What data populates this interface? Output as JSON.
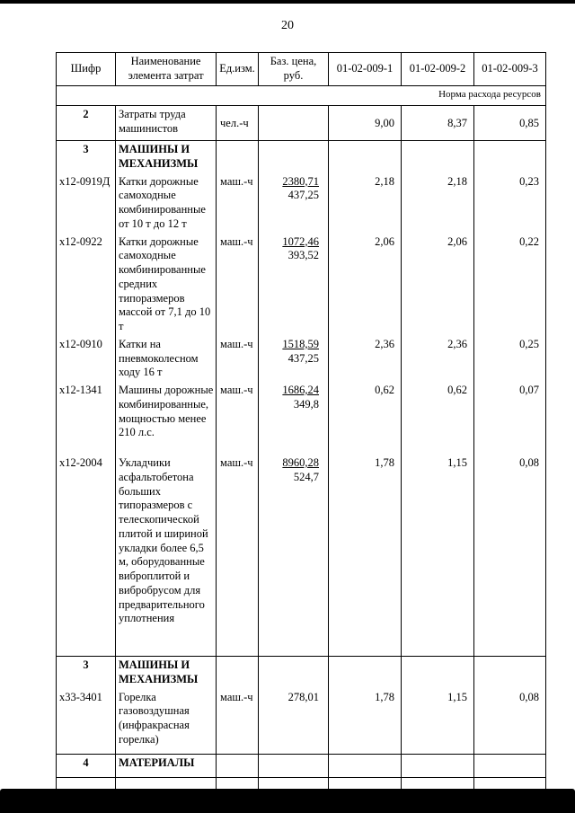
{
  "page": {
    "number": "20"
  },
  "table": {
    "headers": [
      "Шифр",
      "Наименование элемента затрат",
      "Ед.изм.",
      "Баз. цена, руб.",
      "01-02-009-1",
      "01-02-009-2",
      "01-02-009-3"
    ],
    "subheader": "Норма расхода ресурсов",
    "row2": {
      "code": "2",
      "name": "Затраты труда машинистов",
      "unit": "чел.-ч",
      "v1": "9,00",
      "v2": "8,37",
      "v3": "0,85"
    },
    "blocks": [
      {
        "code": "3",
        "title": "МАШИНЫ И МЕХАНИЗМЫ",
        "items": [
          {
            "code": "х12-0919Д",
            "name": "Катки дорожные самоходные комбинированные от 10 т до 12 т",
            "unit": "маш.-ч",
            "price_num": "2380,71",
            "price_den": "437,25",
            "v1": "2,18",
            "v2": "2,18",
            "v3": "0,23"
          },
          {
            "code": "х12-0922",
            "name": "Катки дорожные самоходные комбинированные средних типоразмеров массой от 7,1 до 10 т",
            "unit": "маш.-ч",
            "price_num": "1072,46",
            "price_den": "393,52",
            "v1": "2,06",
            "v2": "2,06",
            "v3": "0,22"
          },
          {
            "code": "х12-0910",
            "name": "Катки на пневмоколесном ходу 16 т",
            "unit": "маш.-ч",
            "price_num": "1518,59",
            "price_den": "437,25",
            "v1": "2,36",
            "v2": "2,36",
            "v3": "0,25"
          },
          {
            "code": "х12-1341",
            "name": "Машины дорожные комбинированные, мощностью менее 210 л.с.",
            "unit": "маш.-ч",
            "price_num": "1686,24",
            "price_den": "349,8",
            "v1": "0,62",
            "v2": "0,62",
            "v3": "0,07"
          },
          {
            "code": "х12-2004",
            "name": "Укладчики асфальтобетона больших типоразмеров с телескопической плитой и шириной укладки более 6,5 м, оборудованные виброплитой и вибробрусом для предварительного уплотнения",
            "unit": "маш.-ч",
            "price_num": "8960,28",
            "price_den": "524,7",
            "v1": "1,78",
            "v2": "1,15",
            "v3": "0,08"
          }
        ]
      },
      {
        "code": "3",
        "title": "МАШИНЫ И МЕХАНИЗМЫ",
        "items": [
          {
            "code": "х33-3401",
            "name": "Горелка газовоздушная (инфракрасная горелка)",
            "unit": "маш.-ч",
            "price_num": "278,01",
            "price_den": "",
            "v1": "1,78",
            "v2": "1,15",
            "v3": "0,08"
          }
        ]
      }
    ],
    "row4": {
      "code": "4",
      "name": "МАТЕРИАЛЫ"
    }
  }
}
